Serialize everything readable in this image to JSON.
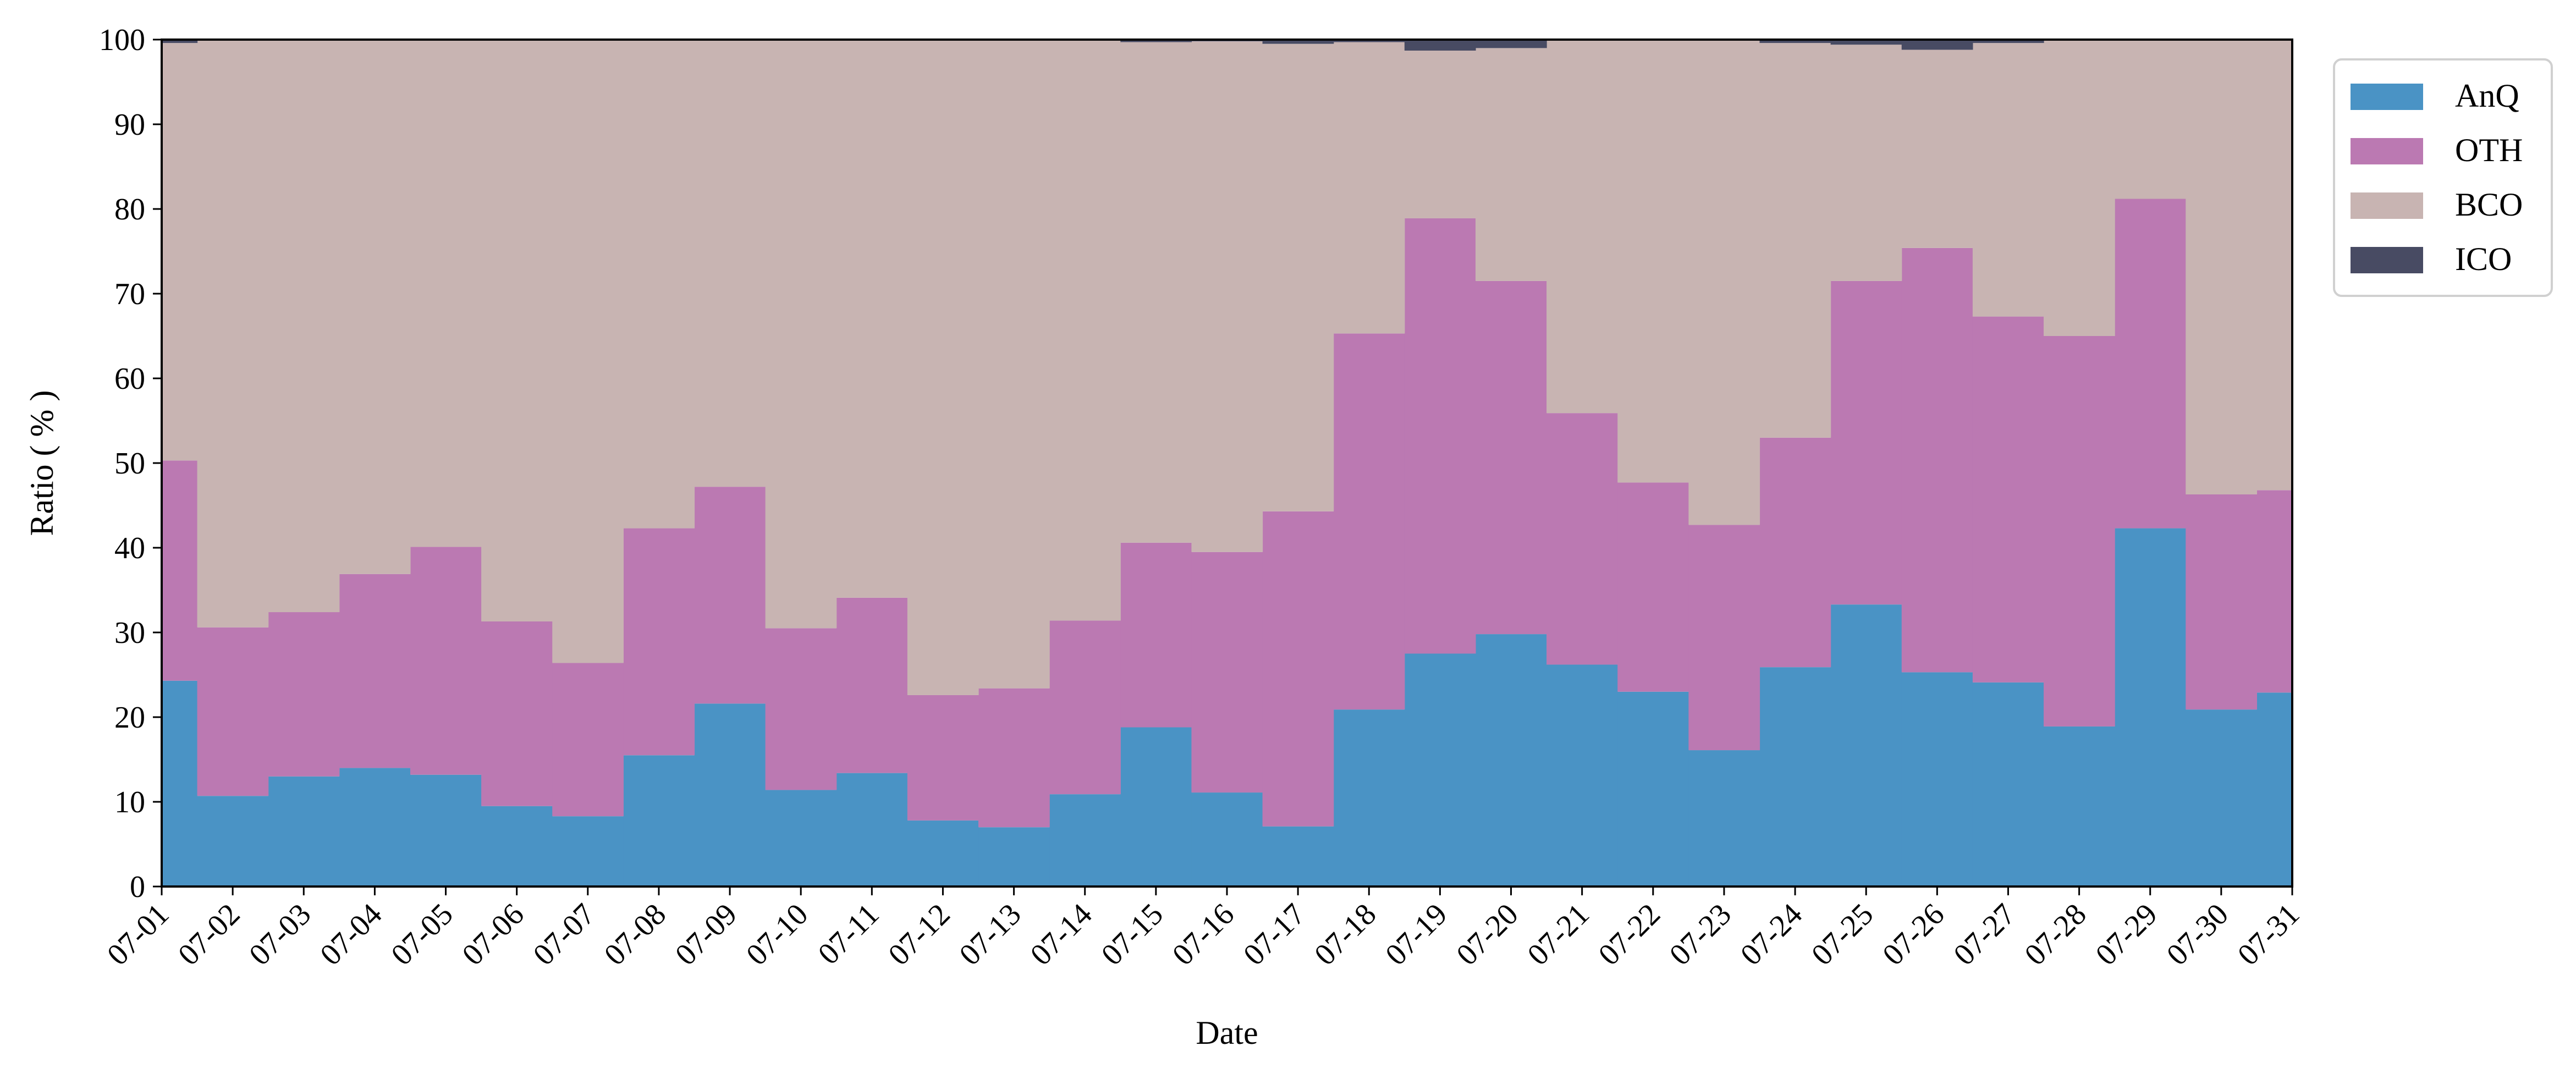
{
  "chart_data": {
    "type": "area",
    "stacked": true,
    "step": true,
    "title": "",
    "xlabel": "Date",
    "ylabel": "Ratio ( % )",
    "ylim": [
      0,
      100
    ],
    "yticks": [
      0,
      10,
      20,
      30,
      40,
      50,
      60,
      70,
      80,
      90,
      100
    ],
    "legend_position": "top-right, outside plot",
    "grid": false,
    "categories": [
      "07-01",
      "07-02",
      "07-03",
      "07-04",
      "07-05",
      "07-06",
      "07-07",
      "07-08",
      "07-09",
      "07-10",
      "07-11",
      "07-12",
      "07-13",
      "07-14",
      "07-15",
      "07-16",
      "07-17",
      "07-18",
      "07-19",
      "07-20",
      "07-21",
      "07-22",
      "07-23",
      "07-24",
      "07-25",
      "07-26",
      "07-27",
      "07-28",
      "07-29",
      "07-30",
      "07-31"
    ],
    "series": [
      {
        "name": "AnQ",
        "color": "#4a93c5",
        "values": [
          24.3,
          10.7,
          13.0,
          14.0,
          13.2,
          9.5,
          8.3,
          15.5,
          21.6,
          11.4,
          13.4,
          7.8,
          7.0,
          10.9,
          18.8,
          11.1,
          7.1,
          20.9,
          27.5,
          29.8,
          26.2,
          23.0,
          16.1,
          25.9,
          33.3,
          25.3,
          24.1,
          18.9,
          42.3,
          20.9,
          22.9
        ]
      },
      {
        "name": "OTH",
        "color": "#bb79b2",
        "values": [
          26.0,
          19.9,
          19.4,
          22.9,
          26.9,
          21.8,
          18.1,
          26.8,
          25.6,
          19.1,
          20.7,
          14.8,
          16.4,
          20.5,
          21.8,
          28.4,
          37.2,
          44.4,
          51.4,
          41.7,
          29.7,
          24.7,
          26.6,
          27.1,
          38.2,
          50.1,
          43.2,
          46.1,
          38.9,
          25.4,
          23.9
        ]
      },
      {
        "name": "BCO",
        "color": "#c8b4b2",
        "values": [
          49.3,
          69.4,
          67.6,
          63.1,
          59.9,
          68.7,
          73.6,
          57.7,
          52.8,
          69.5,
          65.9,
          77.4,
          76.6,
          68.6,
          59.1,
          60.3,
          55.2,
          34.4,
          19.8,
          27.5,
          44.1,
          52.3,
          57.3,
          46.6,
          27.9,
          23.4,
          32.3,
          35.0,
          18.8,
          53.7,
          53.2
        ]
      },
      {
        "name": "ICO",
        "color": "#484b63",
        "values": [
          0.4,
          0,
          0,
          0,
          0,
          0,
          0,
          0,
          0,
          0,
          0,
          0,
          0,
          0,
          0.3,
          0.2,
          0.5,
          0.3,
          1.3,
          1.0,
          0,
          0,
          0,
          0.4,
          0.6,
          1.2,
          0.4,
          0,
          0,
          0,
          0
        ]
      }
    ]
  }
}
